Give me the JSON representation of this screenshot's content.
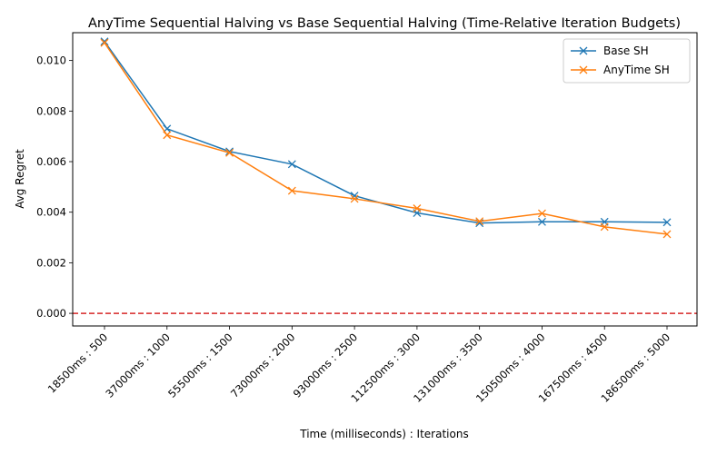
{
  "chart_data": {
    "type": "line",
    "title": "AnyTime Sequential Halving vs Base Sequential Halving (Time-Relative Iteration Budgets)",
    "xlabel": "Time (milliseconds) : Iterations",
    "ylabel": "Avg Regret",
    "categories": [
      "18500ms : 500",
      "37000ms : 1000",
      "55500ms : 1500",
      "73000ms : 2000",
      "93000ms : 2500",
      "112500ms : 3000",
      "131000ms : 3500",
      "150500ms : 4000",
      "167500ms : 4500",
      "186500ms : 5000"
    ],
    "yticks": [
      "0.000",
      "0.002",
      "0.004",
      "0.006",
      "0.008",
      "0.010"
    ],
    "ylim": [
      -0.0005,
      0.0111
    ],
    "grid": false,
    "legend_position": "top-right",
    "reference_line": {
      "y": 0,
      "color": "#d62728",
      "style": "dashed"
    },
    "series": [
      {
        "name": "Base SH",
        "color": "#1f77b4",
        "marker": "x",
        "values": [
          0.01075,
          0.0073,
          0.0064,
          0.0059,
          0.00465,
          0.00397,
          0.00357,
          0.00362,
          0.00362,
          0.0036
        ]
      },
      {
        "name": "AnyTime SH",
        "color": "#ff7f0e",
        "marker": "x",
        "values": [
          0.0107,
          0.00705,
          0.00635,
          0.00485,
          0.00453,
          0.00415,
          0.00364,
          0.00395,
          0.00342,
          0.00313
        ]
      }
    ]
  }
}
